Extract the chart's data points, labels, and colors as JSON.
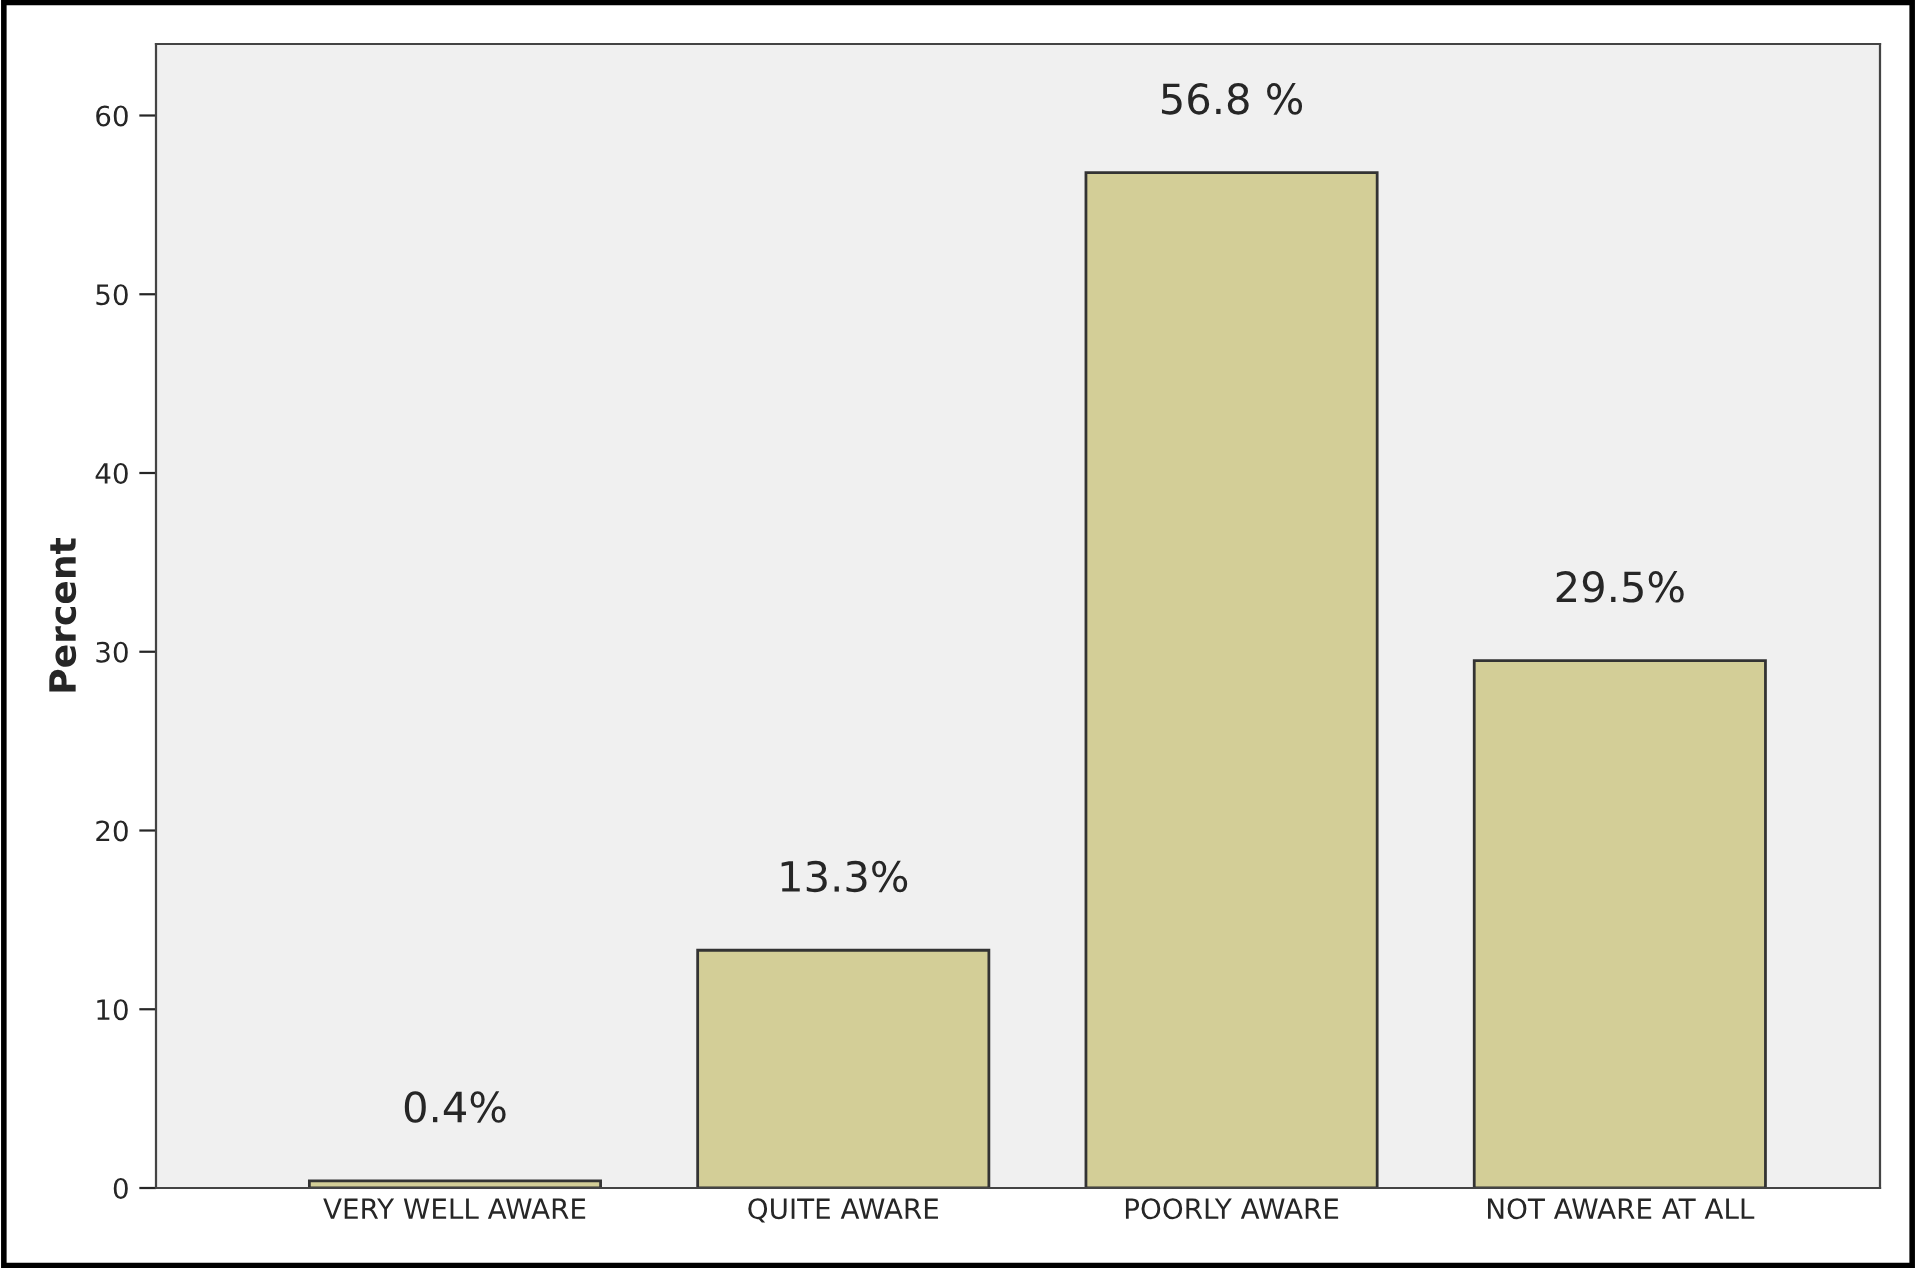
{
  "chart_data": {
    "type": "bar",
    "ylabel": "Percent",
    "categories": [
      "VERY WELL AWARE",
      "QUITE AWARE",
      "POORLY AWARE",
      "NOT AWARE AT ALL"
    ],
    "values": [
      0.4,
      13.3,
      56.8,
      29.5
    ],
    "value_labels": [
      "0.4%",
      "13.3%",
      "56.8 %",
      "29.5%"
    ],
    "color": "#d3ce97",
    "ylim": [
      0,
      64
    ],
    "yticks": [
      0,
      10,
      20,
      30,
      40,
      50,
      60
    ],
    "grid": false,
    "legend": false
  }
}
